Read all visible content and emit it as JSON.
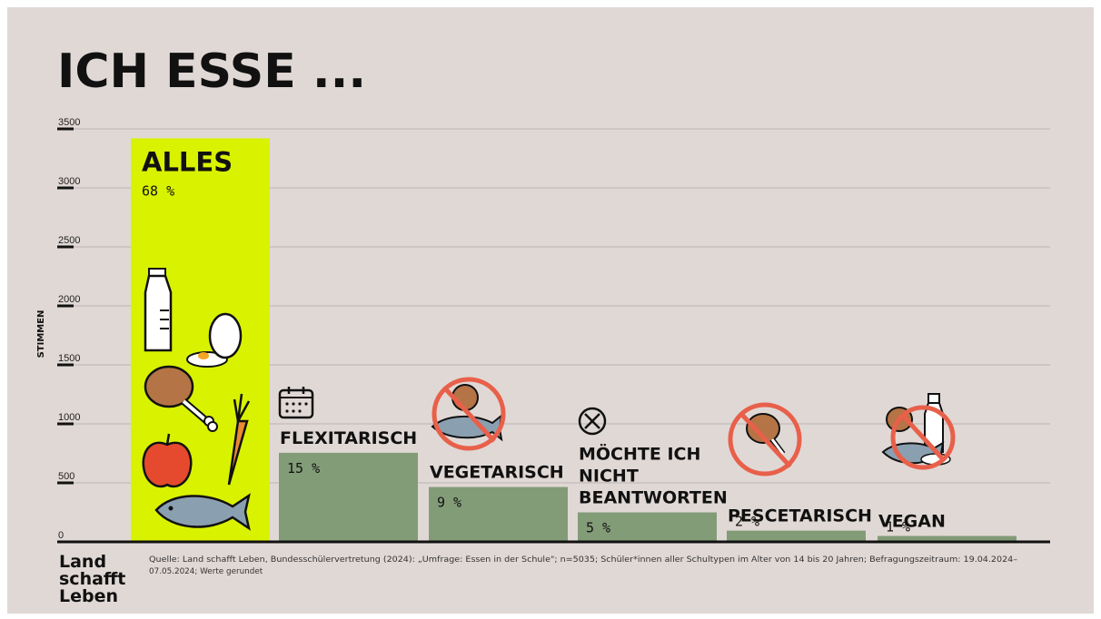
{
  "chart_data": {
    "type": "bar",
    "title": "ICH ESSE ...",
    "ylabel": "STIMMEN",
    "ylim": [
      0,
      3500
    ],
    "yticks": [
      "3500",
      "3000",
      "2500",
      "2000",
      "1500",
      "1000",
      "500",
      "0"
    ],
    "categories": [
      "ALLES",
      "FLEXITARISCH",
      "VEGETARISCH",
      "MÖCHTE ICH NICHT BEANTWORTEN",
      "PESCETARISCH",
      "VEGAN"
    ],
    "category_lines": [
      [
        "ALLES"
      ],
      [
        "FLEXITARISCH"
      ],
      [
        "VEGETARISCH"
      ],
      [
        "MÖCHTE ICH",
        "NICHT",
        "BEANTWORTEN"
      ],
      [
        "PESCETARISCH"
      ],
      [
        "VEGAN"
      ]
    ],
    "percent_labels": [
      "68 %",
      "15 %",
      "9 %",
      "5 %",
      "2 %",
      "1 %"
    ],
    "values": [
      3420,
      755,
      465,
      250,
      95,
      50
    ],
    "grid": true,
    "colors": {
      "highlight": "#d9f200",
      "bars": "#839c78",
      "background": "#e0d8d5",
      "ink": "#111111",
      "accent": "#e8604a"
    }
  },
  "logo": {
    "lines": [
      "Land",
      "schafft",
      "Leben"
    ]
  },
  "source": {
    "line1": "Quelle: Land schafft Leben, Bundesschülervertretung (2024): „Umfrage: Essen in der Schule\"; n=5035; Schüler*innen aller Schultypen im Alter von 14 bis 20 Jahren; Befragungszeitraum: 19.04.2024–",
    "line2": "07.05.2024; Werte gerundet"
  }
}
